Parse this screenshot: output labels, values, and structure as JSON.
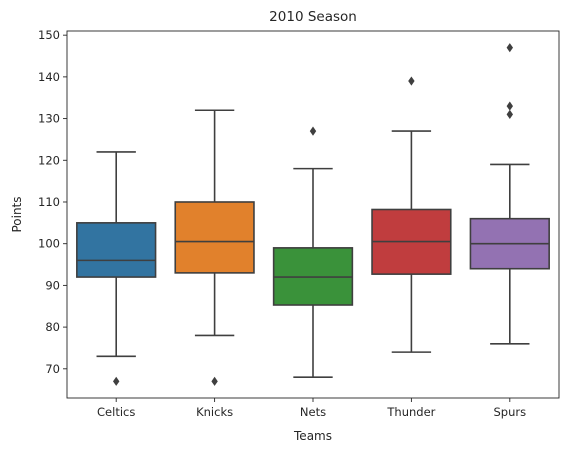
{
  "chart_data": {
    "type": "box",
    "title": "2010 Season",
    "xlabel": "Teams",
    "ylabel": "Points",
    "ylim": [
      63,
      151
    ],
    "yticks": [
      70,
      80,
      90,
      100,
      110,
      120,
      130,
      140,
      150
    ],
    "grid": false,
    "categories": [
      "Celtics",
      "Knicks",
      "Nets",
      "Thunder",
      "Spurs"
    ],
    "series": [
      {
        "category": "Celtics",
        "color": "#3274a1",
        "whisker_low": 73,
        "q1": 92,
        "median": 96,
        "q3": 105,
        "whisker_high": 122,
        "outliers": [
          67
        ]
      },
      {
        "category": "Knicks",
        "color": "#e1812c",
        "whisker_low": 78,
        "q1": 93,
        "median": 100.5,
        "q3": 110,
        "whisker_high": 132,
        "outliers": [
          67
        ]
      },
      {
        "category": "Nets",
        "color": "#3a923a",
        "whisker_low": 68,
        "q1": 85.3,
        "median": 92,
        "q3": 99,
        "whisker_high": 118,
        "outliers": [
          127
        ]
      },
      {
        "category": "Thunder",
        "color": "#c03d3e",
        "whisker_low": 74,
        "q1": 92.7,
        "median": 100.5,
        "q3": 108.2,
        "whisker_high": 127,
        "outliers": [
          139
        ]
      },
      {
        "category": "Spurs",
        "color": "#9372b2",
        "whisker_low": 76,
        "q1": 94,
        "median": 100,
        "q3": 106,
        "whisker_high": 119,
        "outliers": [
          131,
          133,
          147
        ]
      }
    ]
  }
}
